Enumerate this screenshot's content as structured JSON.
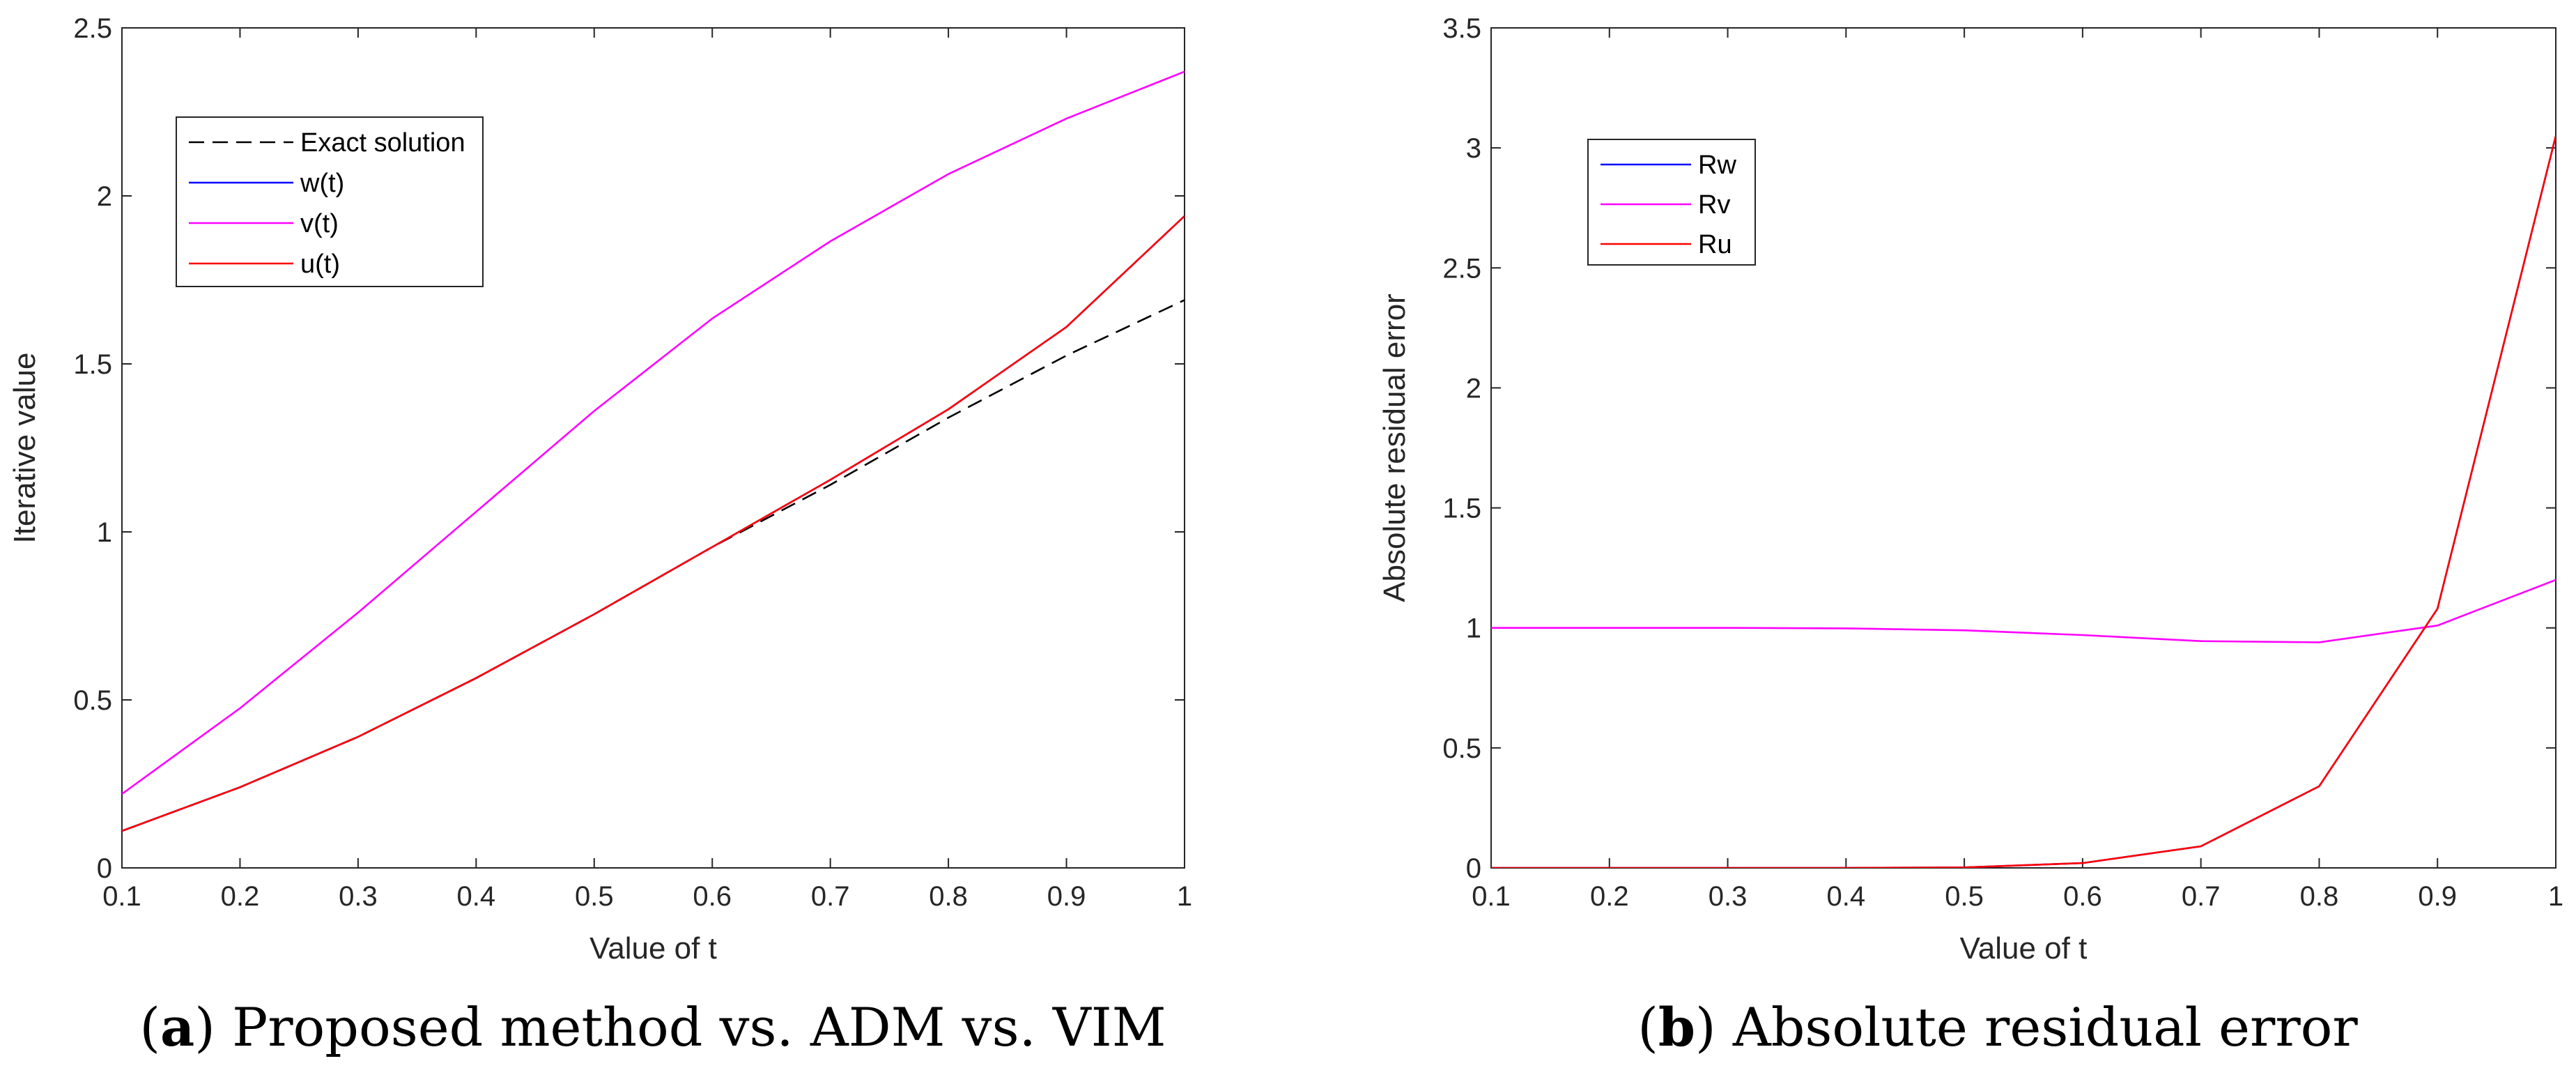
{
  "chart_data": [
    {
      "type": "line",
      "xlabel": "Value of t",
      "ylabel": "Iterative value",
      "xlim": [
        0.1,
        1
      ],
      "ylim": [
        0,
        2.5
      ],
      "xticks": [
        0.1,
        0.2,
        0.3,
        0.4,
        0.5,
        0.6,
        0.7,
        0.8,
        0.9,
        1
      ],
      "xtick_labels": [
        "0.1",
        "0.2",
        "0.3",
        "0.4",
        "0.5",
        "0.6",
        "0.7",
        "0.8",
        "0.9",
        "1"
      ],
      "yticks": [
        0,
        0.5,
        1,
        1.5,
        2,
        2.5
      ],
      "ytick_labels": [
        "0",
        "0.5",
        "1",
        "1.5",
        "2",
        "2.5"
      ],
      "legend_position": "top-left",
      "x": [
        0.1,
        0.2,
        0.3,
        0.4,
        0.5,
        0.6,
        0.7,
        0.8,
        0.9,
        1.0
      ],
      "series": [
        {
          "name": "Exact solution",
          "color": "#000000",
          "dashed": true,
          "values": [
            0.11,
            0.24,
            0.39,
            0.565,
            0.755,
            0.955,
            1.14,
            1.34,
            1.525,
            1.69
          ]
        },
        {
          "name": "w(t)",
          "color": "#0000ff",
          "dashed": false,
          "values": [
            0.11,
            0.24,
            0.39,
            0.565,
            0.755,
            0.955,
            1.155,
            1.365,
            1.61,
            1.94
          ]
        },
        {
          "name": "v(t)",
          "color": "#ff00ff",
          "dashed": false,
          "values": [
            0.22,
            0.475,
            0.76,
            1.06,
            1.36,
            1.635,
            1.865,
            2.065,
            2.23,
            2.37
          ]
        },
        {
          "name": "u(t)",
          "color": "#ff0000",
          "dashed": false,
          "values": [
            0.11,
            0.24,
            0.39,
            0.565,
            0.755,
            0.955,
            1.155,
            1.365,
            1.61,
            1.94
          ]
        }
      ],
      "caption_label": "a",
      "caption_text": "Proposed method vs. ADM vs. VIM"
    },
    {
      "type": "line",
      "xlabel": "Value of t",
      "ylabel": "Absolute residual error",
      "xlim": [
        0.1,
        1
      ],
      "ylim": [
        0,
        3.5
      ],
      "xticks": [
        0.1,
        0.2,
        0.3,
        0.4,
        0.5,
        0.6,
        0.7,
        0.8,
        0.9,
        1
      ],
      "xtick_labels": [
        "0.1",
        "0.2",
        "0.3",
        "0.4",
        "0.5",
        "0.6",
        "0.7",
        "0.8",
        "0.9",
        "1"
      ],
      "yticks": [
        0,
        0.5,
        1,
        1.5,
        2,
        2.5,
        3,
        3.5
      ],
      "ytick_labels": [
        "0",
        "0.5",
        "1",
        "1.5",
        "2",
        "2.5",
        "3",
        "3.5"
      ],
      "legend_position": "top-left",
      "x": [
        0.1,
        0.2,
        0.3,
        0.4,
        0.5,
        0.6,
        0.7,
        0.8,
        0.9,
        1.0
      ],
      "series": [
        {
          "name": "Rw",
          "color": "#0000ff",
          "dashed": false,
          "values": [
            0,
            0,
            0,
            0,
            0.002,
            0.02,
            0.09,
            0.34,
            1.08,
            3.05
          ]
        },
        {
          "name": "Rv",
          "color": "#ff00ff",
          "dashed": false,
          "values": [
            1.0,
            1.0,
            1.0,
            0.998,
            0.99,
            0.97,
            0.945,
            0.94,
            1.01,
            1.2
          ]
        },
        {
          "name": "Ru",
          "color": "#ff0000",
          "dashed": false,
          "values": [
            0,
            0,
            0,
            0,
            0.002,
            0.02,
            0.09,
            0.34,
            1.08,
            3.05
          ]
        }
      ],
      "caption_label": "b",
      "caption_text": "Absolute residual error"
    }
  ]
}
